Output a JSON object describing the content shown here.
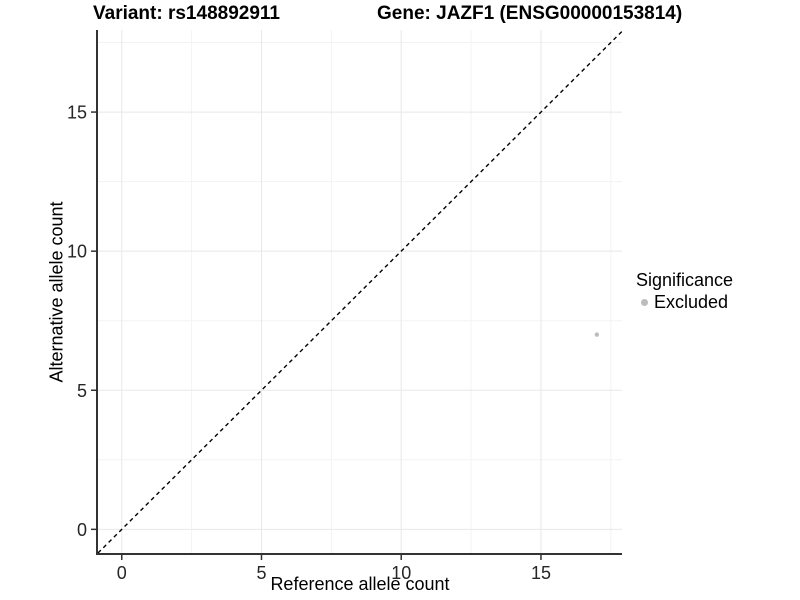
{
  "figure": {
    "title_left": "Variant: rs148892911",
    "title_right": "Gene: JAZF1 (ENSG00000153814)"
  },
  "chart_data": {
    "type": "scatter",
    "title": "Variant: rs148892911    Gene: JAZF1 (ENSG00000153814)",
    "variant": "rs148892911",
    "gene": "JAZF1",
    "gene_id": "ENSG00000153814",
    "xlabel": "Reference allele count",
    "ylabel": "Alternative allele count",
    "xlim": [
      -0.85,
      17.9
    ],
    "ylim": [
      -0.85,
      17.95
    ],
    "xticks": [
      0,
      5,
      10,
      15
    ],
    "xtick_labels": [
      "0",
      "5",
      "10",
      "15"
    ],
    "yticks": [
      0,
      5,
      10,
      15
    ],
    "ytick_labels": [
      "0",
      "5",
      "10",
      "15"
    ],
    "x_minor_ticks": [
      2.5,
      7.5,
      12.5,
      17.5
    ],
    "y_minor_ticks": [
      2.5,
      7.5,
      12.5,
      17.5
    ],
    "grid": true,
    "points": [
      {
        "x": 17,
        "y": 7,
        "series": "Excluded",
        "color": "#bdbdbd"
      }
    ],
    "identity_line": {
      "equation": "y = x",
      "style": "dashed",
      "color": "#000000"
    },
    "legend": {
      "position": "right",
      "title": "Significance",
      "items": [
        {
          "label": "Excluded",
          "color": "#bdbdbd",
          "marker": "circle"
        }
      ]
    },
    "style": {
      "axis_color": "#333333",
      "tick_label_color": "#262626",
      "grid_major_color": "#e8e8e8",
      "grid_minor_color": "#f3f3f3",
      "tick_font_px": 18,
      "point_radius_px": 2.2
    }
  }
}
